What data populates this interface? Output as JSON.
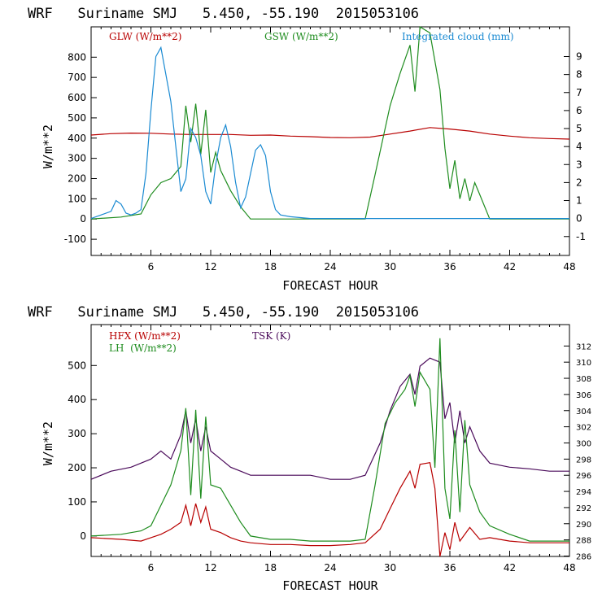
{
  "chart_data": [
    {
      "type": "line",
      "title": "WRF   Suriname SMJ   5.450, -55.190  2015053106",
      "xlabel": "FORECAST HOUR",
      "ylabel": "W/m**2",
      "xlim": [
        0,
        48
      ],
      "ylim": [
        -180,
        950
      ],
      "y2lim": [
        -2.05,
        10.65
      ],
      "xticks": [
        6,
        12,
        18,
        24,
        30,
        36,
        42,
        48
      ],
      "yticks": [
        -100,
        0,
        100,
        200,
        300,
        400,
        500,
        600,
        700,
        800
      ],
      "y2ticks": [
        -1,
        0,
        1,
        2,
        3,
        4,
        5,
        6,
        7,
        8,
        9
      ],
      "legend": [
        {
          "label": "GLW (W/m**2)",
          "color": "#b80000"
        },
        {
          "label": "GSW (W/m**2)",
          "color": "#1e8c1e"
        },
        {
          "label": "Integrated cloud (mm)",
          "color": "#1a8ad2"
        }
      ],
      "series": [
        {
          "name": "GLW (W/m**2)",
          "color": "#b80000",
          "axis": "left",
          "x": [
            0,
            2,
            4,
            6,
            8,
            10,
            12,
            14,
            16,
            18,
            20,
            22,
            24,
            26,
            28,
            30,
            32,
            34,
            36,
            38,
            40,
            42,
            44,
            46,
            48
          ],
          "y": [
            415,
            422,
            425,
            424,
            420,
            418,
            418,
            418,
            414,
            415,
            410,
            407,
            403,
            402,
            405,
            420,
            435,
            452,
            445,
            435,
            420,
            410,
            402,
            398,
            395
          ]
        },
        {
          "name": "GSW (W/m**2)",
          "color": "#1e8c1e",
          "axis": "left",
          "x": [
            0,
            3,
            5,
            6,
            7,
            8,
            9,
            9.5,
            10,
            10.5,
            11,
            11.5,
            12,
            12.5,
            13,
            14,
            15,
            16,
            27.5,
            28.5,
            30,
            31,
            32,
            32.5,
            33,
            34,
            35,
            35.5,
            36,
            36.5,
            37,
            37.5,
            38,
            38.5,
            39,
            40,
            48
          ],
          "y": [
            0,
            10,
            25,
            120,
            180,
            200,
            260,
            560,
            380,
            570,
            320,
            540,
            230,
            330,
            240,
            140,
            60,
            0,
            0,
            220,
            560,
            720,
            860,
            630,
            950,
            920,
            640,
            350,
            150,
            290,
            100,
            200,
            90,
            180,
            120,
            0,
            0
          ]
        },
        {
          "name": "Integrated cloud (mm)",
          "color": "#1a8ad2",
          "axis": "right",
          "x": [
            0,
            2,
            2.5,
            3,
            3.5,
            4,
            4.5,
            5,
            5.5,
            6,
            6.5,
            7,
            7.5,
            8,
            8.5,
            9,
            9.5,
            10,
            10.5,
            11,
            11.5,
            12,
            12.5,
            13,
            13.5,
            14,
            14.5,
            15,
            15.5,
            16,
            16.5,
            17,
            17.5,
            18,
            18.5,
            19,
            20,
            21,
            22,
            48
          ],
          "y": [
            0,
            0.4,
            1.0,
            0.8,
            0.3,
            0.2,
            0.3,
            0.5,
            2.5,
            6.0,
            9.0,
            9.5,
            8.0,
            6.5,
            4.0,
            1.5,
            2.2,
            5.0,
            4.5,
            3.5,
            1.5,
            0.8,
            3.0,
            4.5,
            5.2,
            4.0,
            2.0,
            0.6,
            1.2,
            2.5,
            3.8,
            4.1,
            3.5,
            1.5,
            0.5,
            0.2,
            0.1,
            0.05,
            0,
            0
          ]
        }
      ]
    },
    {
      "type": "line",
      "title": "WRF   Suriname SMJ   5.450, -55.190  2015053106",
      "xlabel": "FORECAST HOUR",
      "ylabel": "W/m**2",
      "xlim": [
        0,
        48
      ],
      "ylim": [
        -60,
        620
      ],
      "y2lim": [
        285.95,
        314.65
      ],
      "xticks": [
        6,
        12,
        18,
        24,
        30,
        36,
        42,
        48
      ],
      "yticks": [
        0,
        100,
        200,
        300,
        400,
        500
      ],
      "y2ticks": [
        286,
        288,
        290,
        292,
        294,
        296,
        298,
        300,
        302,
        304,
        306,
        308,
        310,
        312
      ],
      "legend": [
        {
          "label": "HFX (W/m**2)",
          "color": "#b80000"
        },
        {
          "label": "TSK (K)",
          "color": "#4a0a5a"
        },
        {
          "label": "LH  (W/m**2)",
          "color": "#1e8c1e"
        }
      ],
      "series": [
        {
          "name": "HFX (W/m**2)",
          "color": "#b80000",
          "axis": "left",
          "x": [
            0,
            3,
            5,
            6,
            7,
            8,
            9,
            9.5,
            10,
            10.5,
            11,
            11.5,
            12,
            13,
            14,
            15,
            16,
            18,
            20,
            22,
            24,
            26,
            27.5,
            29,
            30,
            31,
            32,
            32.5,
            33,
            34,
            34.5,
            35,
            35.5,
            36,
            36.5,
            37,
            38,
            39,
            40,
            42,
            44,
            48
          ],
          "y": [
            -5,
            -10,
            -15,
            -5,
            5,
            20,
            40,
            90,
            30,
            95,
            40,
            85,
            20,
            10,
            -5,
            -15,
            -20,
            -25,
            -25,
            -28,
            -28,
            -25,
            -20,
            20,
            80,
            140,
            190,
            140,
            210,
            215,
            140,
            -60,
            10,
            -40,
            40,
            -15,
            25,
            -10,
            -5,
            -15,
            -20,
            -20
          ]
        },
        {
          "name": "TSK (K)",
          "color": "#4a0a5a",
          "axis": "right",
          "x": [
            0,
            2,
            4,
            6,
            7,
            8,
            9,
            9.5,
            10,
            10.5,
            11,
            11.5,
            12,
            13,
            14,
            15,
            16,
            18,
            20,
            22,
            24,
            26,
            27.5,
            29,
            30,
            31,
            32,
            32.5,
            33,
            34,
            35,
            35.5,
            36,
            36.5,
            37,
            37.5,
            38,
            39,
            40,
            42,
            44,
            46,
            48
          ],
          "y": [
            295.5,
            296.5,
            297,
            298,
            299,
            298,
            301,
            304,
            300,
            303,
            299,
            302,
            299,
            298,
            297,
            296.5,
            296,
            296,
            296,
            296,
            295.5,
            295.5,
            296,
            300,
            304,
            307,
            308.5,
            306,
            309.5,
            310.5,
            310,
            303,
            305,
            300,
            304,
            300,
            302,
            299,
            297.5,
            297,
            296.8,
            296.5,
            296.5
          ]
        },
        {
          "name": "LH  (W/m**2)",
          "color": "#1e8c1e",
          "axis": "left",
          "x": [
            0,
            3,
            5,
            6,
            7,
            8,
            9,
            9.5,
            10,
            10.5,
            11,
            11.5,
            12,
            13,
            14,
            15,
            16,
            18,
            20,
            22,
            24,
            26,
            27.5,
            28.5,
            29.5,
            30.5,
            31.5,
            32,
            32.5,
            33,
            34,
            34.5,
            35,
            35.5,
            36,
            36.5,
            37,
            37.5,
            38,
            39,
            40,
            42,
            44,
            48
          ],
          "y": [
            0,
            5,
            15,
            30,
            90,
            150,
            250,
            375,
            120,
            370,
            110,
            350,
            150,
            140,
            90,
            40,
            0,
            -10,
            -10,
            -15,
            -15,
            -15,
            -10,
            150,
            330,
            390,
            430,
            470,
            380,
            480,
            430,
            200,
            580,
            140,
            50,
            310,
            70,
            340,
            150,
            70,
            30,
            5,
            -15,
            -15
          ]
        }
      ]
    }
  ]
}
